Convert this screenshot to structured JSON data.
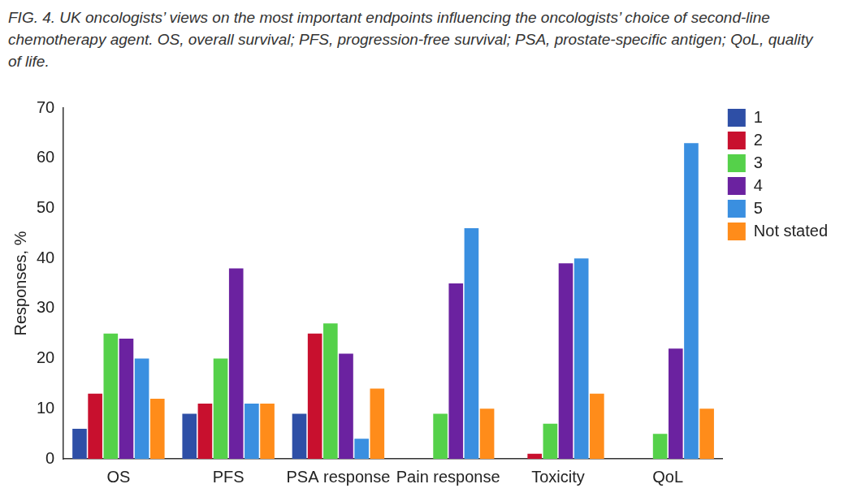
{
  "chart_data": {
    "type": "bar",
    "title": "FIG. 4. UK oncologists’ views on the most important endpoints influencing the oncologists’ choice of second-line chemotherapy agent. OS, overall survival; PFS, progression-free survival; PSA, prostate-specific antigen; QoL, quality of life.",
    "y_label": "Responses, %",
    "categories": [
      "OS",
      "PFS",
      "PSA response",
      "Pain response",
      "Toxicity",
      "QoL"
    ],
    "series": [
      {
        "name": "1",
        "color": "#2e4fa6",
        "values": [
          6,
          9,
          9,
          0,
          0,
          0
        ]
      },
      {
        "name": "2",
        "color": "#c8102e",
        "values": [
          13,
          11,
          25,
          0,
          1,
          0
        ]
      },
      {
        "name": "3",
        "color": "#55d14a",
        "values": [
          25,
          20,
          27,
          9,
          7,
          5
        ]
      },
      {
        "name": "4",
        "color": "#6b22a0",
        "values": [
          24,
          38,
          21,
          35,
          39,
          22
        ]
      },
      {
        "name": "5",
        "color": "#3a8fe0",
        "values": [
          20,
          11,
          4,
          46,
          40,
          63
        ]
      },
      {
        "name": "Not stated",
        "color": "#ff8c1a",
        "values": [
          12,
          11,
          14,
          10,
          13,
          10
        ]
      }
    ],
    "ylim": [
      0,
      70
    ],
    "yticks": [
      0,
      10,
      20,
      30,
      40,
      50,
      60,
      70
    ],
    "grid": false,
    "legend": "right"
  }
}
